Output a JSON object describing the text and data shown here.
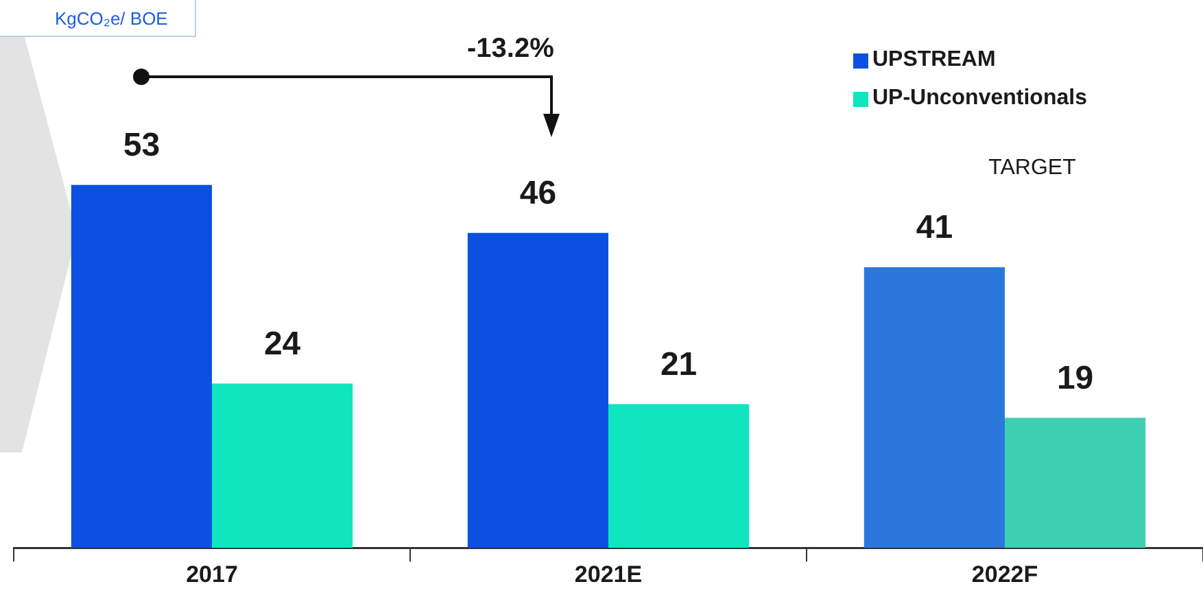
{
  "chart_data": {
    "type": "bar",
    "categories": [
      "2017",
      "2021E",
      "2022F"
    ],
    "series": [
      {
        "name": "UPSTREAM",
        "color": "#0b50e0",
        "colors": [
          "#0b50e0",
          "#0b50e0",
          "#2a78dc"
        ],
        "values": [
          53,
          46,
          41
        ]
      },
      {
        "name": "UP-Unconventionals",
        "color": "#0fe6bf",
        "colors": [
          "#0fe6bf",
          "#0fe6bf",
          "#3cd0b0"
        ],
        "values": [
          24,
          21,
          19
        ]
      }
    ],
    "data_labels": true,
    "grid": false,
    "legend": "top right",
    "tick_labels": "x",
    "annotations": [
      "KgCO₂e/ BOE",
      "-13.2%",
      "TARGET"
    ]
  }
}
